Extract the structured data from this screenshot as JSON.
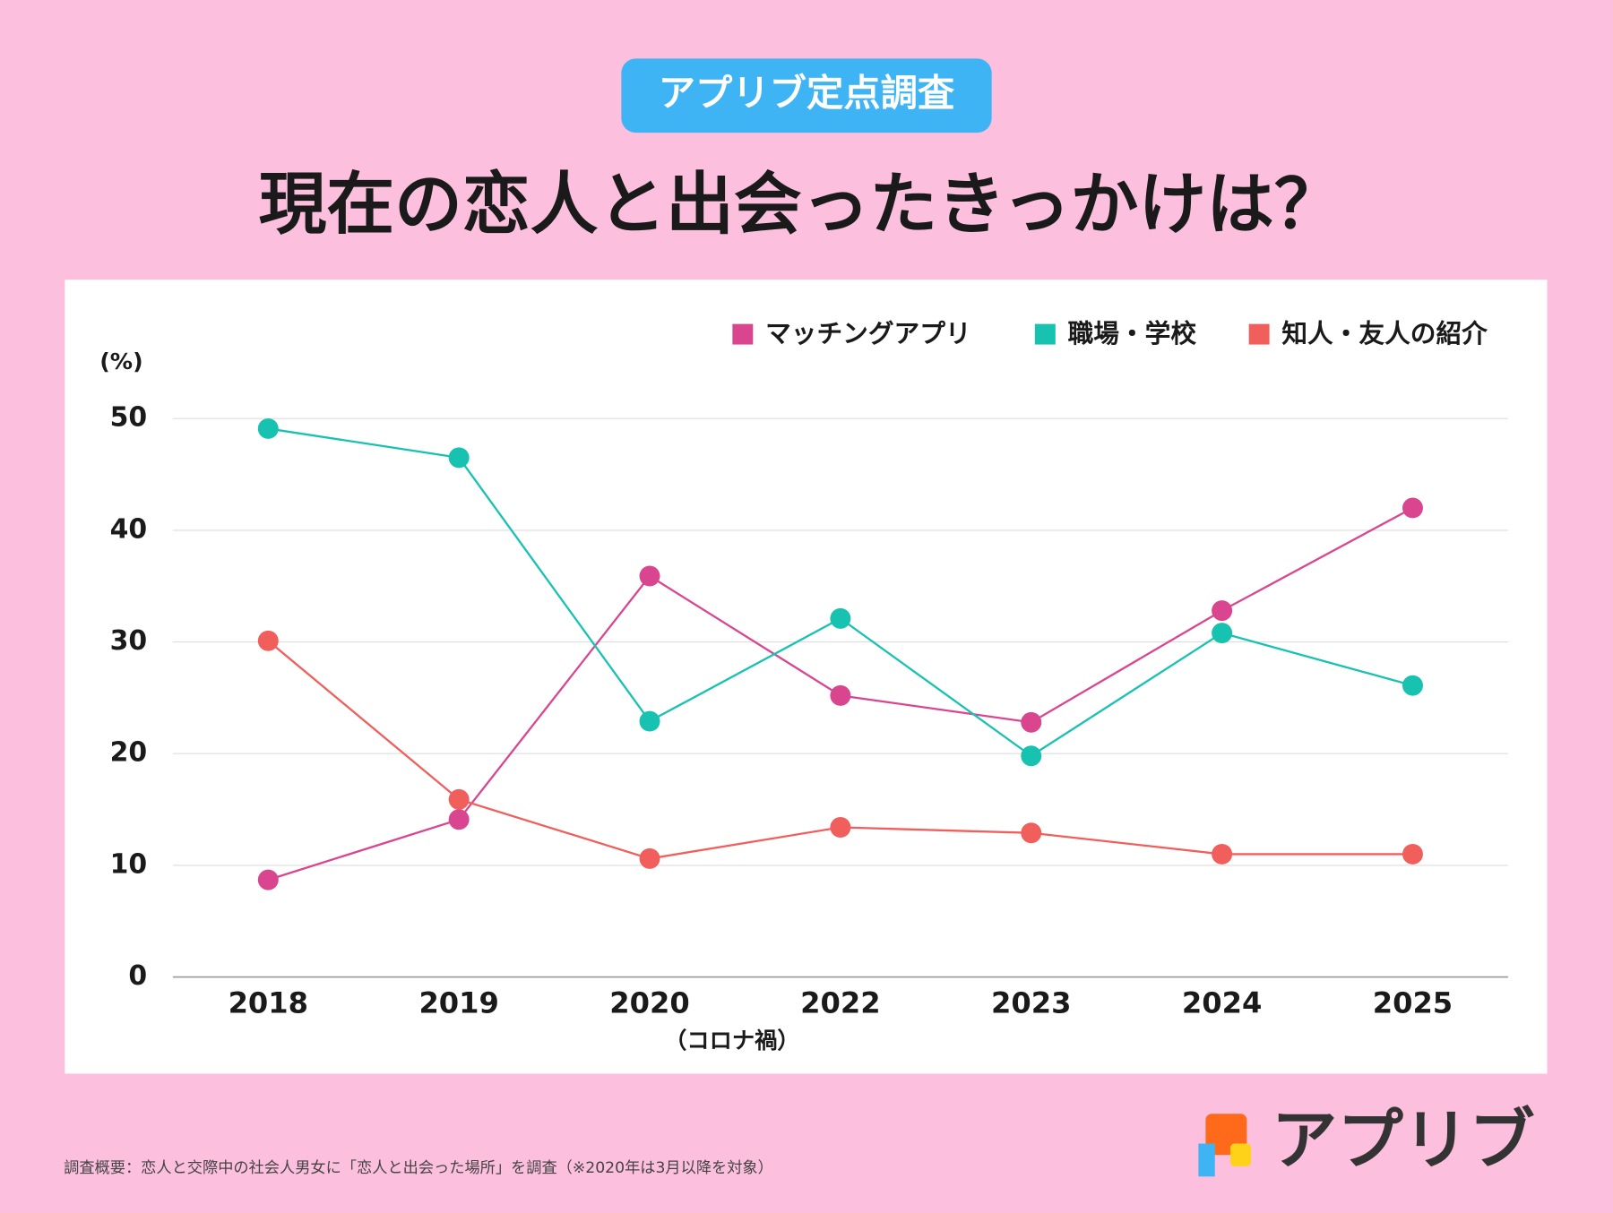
{
  "header": {
    "badge": "アプリブ定点調査"
  },
  "chart_data": {
    "type": "line",
    "title": "現在の恋人と出会ったきっかけは？",
    "y_unit": "(%)",
    "categories": [
      "2018",
      "2019",
      "2020",
      "2022",
      "2023",
      "2024",
      "2025"
    ],
    "category_note": {
      "index": 2,
      "label": "（コロナ禍）"
    },
    "series": [
      {
        "name": "マッチングアプリ",
        "color": "#d9468f",
        "values": [
          8.7,
          14.1,
          35.9,
          25.2,
          22.8,
          32.8,
          42.0
        ]
      },
      {
        "name": "職場・学校",
        "color": "#17c2b0",
        "values": [
          49.1,
          46.5,
          22.9,
          32.1,
          19.8,
          30.8,
          26.1
        ]
      },
      {
        "name": "知人・友人の紹介",
        "color": "#f05f5c",
        "values": [
          30.1,
          15.9,
          10.6,
          13.4,
          12.9,
          11.0,
          11.0
        ]
      }
    ],
    "ylim": [
      0,
      50
    ],
    "yticks": [
      0,
      10,
      20,
      30,
      40,
      50
    ],
    "grid": true,
    "legend": "top-right"
  },
  "footer": {
    "note": "調査概要：恋人と交際中の社会人男女に「恋人と出会った場所」を調査（※2020年は3月以降を対象）",
    "logo": "アプリブ"
  }
}
